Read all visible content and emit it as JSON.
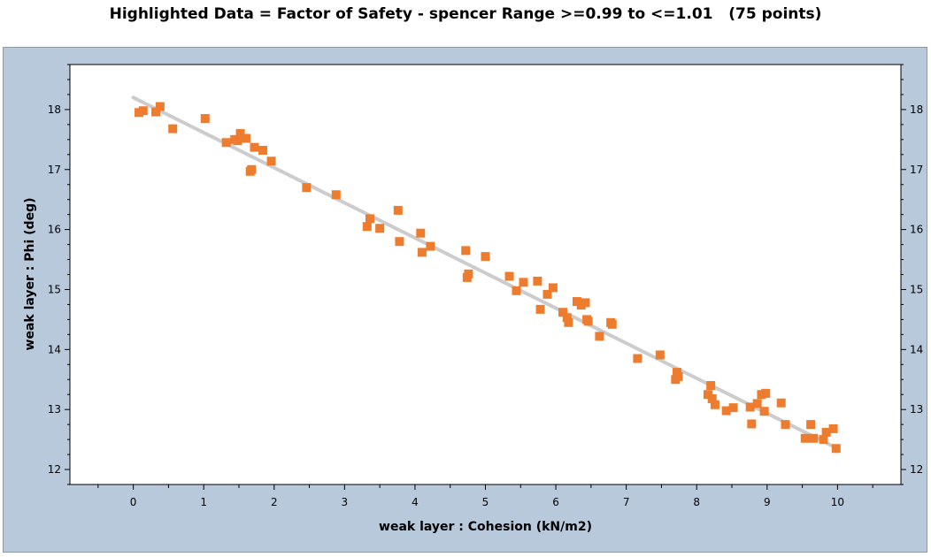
{
  "title": "Highlighted Data = Factor of Safety - spencer Range >=0.99 to <=1.01   (75 points)",
  "colors": {
    "panel_bg": "#b8c9dc",
    "plot_bg": "#ffffff",
    "points": "#ee7c2f",
    "trendline": "#cccccc"
  },
  "chart_data": {
    "type": "scatter",
    "xlabel": "weak layer : Cohesion (kN/m2)",
    "ylabel": "weak layer : Phi (deg)",
    "xlim": [
      -0.9,
      10.9
    ],
    "ylim": [
      11.75,
      18.75
    ],
    "x_ticks": [
      0,
      1,
      2,
      3,
      4,
      5,
      6,
      7,
      8,
      9,
      10
    ],
    "y_ticks": [
      12,
      13,
      14,
      15,
      16,
      17,
      18
    ],
    "grid": false,
    "trendline": {
      "x": [
        0.0,
        10.0
      ],
      "y": [
        18.2,
        12.35
      ]
    },
    "points": {
      "x": [
        0.08,
        0.14,
        0.32,
        0.38,
        0.56,
        1.02,
        1.32,
        1.44,
        1.48,
        1.52,
        1.56,
        1.6,
        1.66,
        1.68,
        1.72,
        1.84,
        1.96,
        2.46,
        2.88,
        3.32,
        3.36,
        3.5,
        3.76,
        3.78,
        4.08,
        4.1,
        4.22,
        4.72,
        4.74,
        4.76,
        5.0,
        5.34,
        5.44,
        5.54,
        5.74,
        5.78,
        5.88,
        5.96,
        6.1,
        6.16,
        6.18,
        6.3,
        6.36,
        6.42,
        6.44,
        6.46,
        6.62,
        6.78,
        6.8,
        7.16,
        7.48,
        7.7,
        7.72,
        7.74,
        8.16,
        8.2,
        8.22,
        8.26,
        8.42,
        8.52,
        8.76,
        8.78,
        8.86,
        8.92,
        8.96,
        8.98,
        9.2,
        9.26,
        9.54,
        9.62,
        9.66,
        9.8,
        9.84,
        9.94,
        9.98
      ],
      "y": [
        17.95,
        17.98,
        17.96,
        18.05,
        17.68,
        17.85,
        17.45,
        17.5,
        17.48,
        17.6,
        17.52,
        17.52,
        16.97,
        17.0,
        17.37,
        17.32,
        17.14,
        16.7,
        16.58,
        16.05,
        16.18,
        16.02,
        16.32,
        15.8,
        15.94,
        15.62,
        15.72,
        15.65,
        15.2,
        15.26,
        15.55,
        15.22,
        14.98,
        15.12,
        15.14,
        14.67,
        14.92,
        15.03,
        14.62,
        14.53,
        14.45,
        14.8,
        14.74,
        14.78,
        14.5,
        14.47,
        14.22,
        14.45,
        14.42,
        13.85,
        13.91,
        13.5,
        13.62,
        13.55,
        13.25,
        13.4,
        13.18,
        13.08,
        12.98,
        13.03,
        13.04,
        12.76,
        13.1,
        13.25,
        12.97,
        13.27,
        13.11,
        12.75,
        12.52,
        12.75,
        12.52,
        12.5,
        12.62,
        12.68,
        12.35
      ]
    }
  }
}
